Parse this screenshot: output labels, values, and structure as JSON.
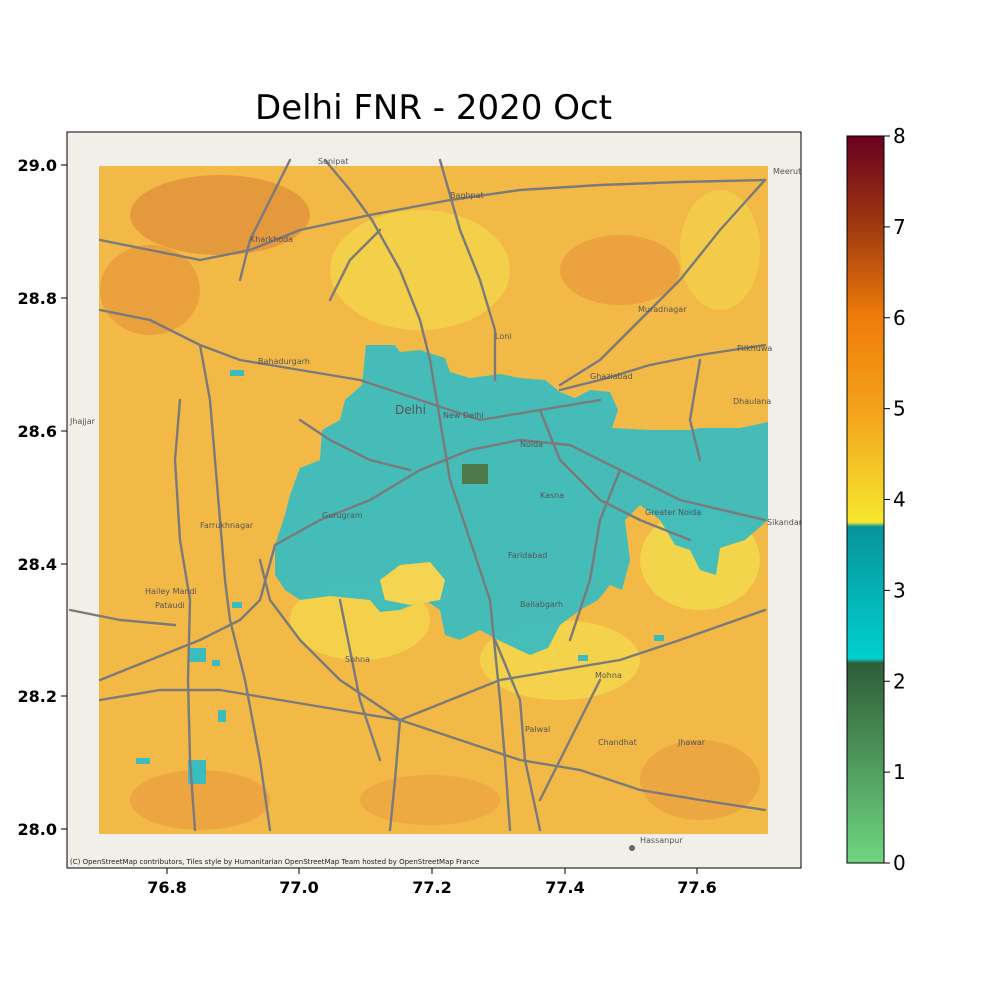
{
  "title": "Delhi FNR - 2020 Oct",
  "attribution": "(C) OpenStreetMap contributors, Tiles style by Humanitarian OpenStreetMap Team hosted by OpenStreetMap France",
  "x_ticks": [
    "76.8",
    "77.0",
    "77.2",
    "77.4",
    "77.6"
  ],
  "y_ticks": [
    "29.0",
    "28.8",
    "28.6",
    "28.4",
    "28.2",
    "28.0"
  ],
  "colorbar": {
    "ticks": [
      "0",
      "1",
      "2",
      "3",
      "4",
      "5",
      "6",
      "7",
      "8"
    ],
    "stops": [
      {
        "v": 0.0,
        "c": "#6fd67f"
      },
      {
        "v": 2.2,
        "c": "#2f5d39"
      },
      {
        "v": 2.25,
        "c": "#00cfcf"
      },
      {
        "v": 3.7,
        "c": "#08949a"
      },
      {
        "v": 3.75,
        "c": "#f6e830"
      },
      {
        "v": 5.0,
        "c": "#f3a11a"
      },
      {
        "v": 6.0,
        "c": "#f07c0a"
      },
      {
        "v": 7.0,
        "c": "#a03a10"
      },
      {
        "v": 8.0,
        "c": "#6a0020"
      }
    ]
  },
  "places": [
    "Sonipat",
    "Meerut",
    "Kharkhoda",
    "Bahadurgarh",
    "Delhi",
    "New Delhi",
    "Noida",
    "Ghaziabad",
    "Greater Noida",
    "Gurugram",
    "Faridabad",
    "Ballabgarh",
    "Jhajjar",
    "Farrukhnagar",
    "Hailey Mandi",
    "Pataudi",
    "Sohna",
    "Palwal",
    "Hassanpur",
    "Chandhat",
    "Mohna",
    "Pilkhuwa",
    "Dhaulana",
    "Loni",
    "Baghpat",
    "Muradnagar",
    "Sikandarabad",
    "Jhawar",
    "Kasna"
  ]
}
